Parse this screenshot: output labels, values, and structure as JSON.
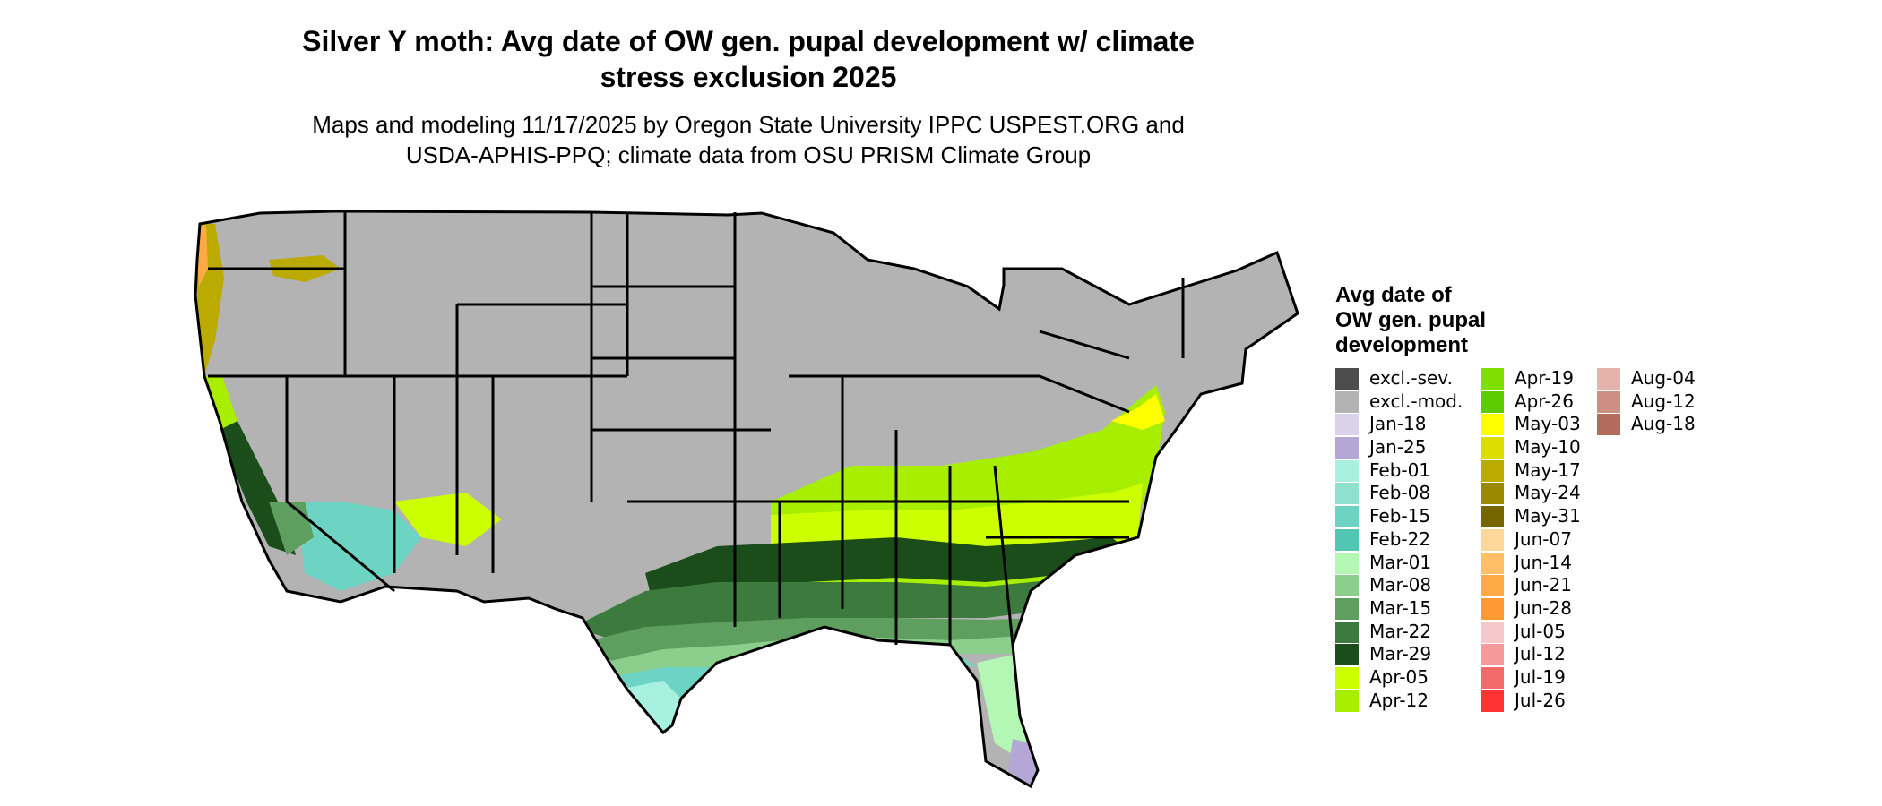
{
  "title": "Silver Y moth: Avg date of OW gen. pupal development w/ climate stress exclusion 2025",
  "title_lines": [
    "Silver Y moth: Avg date of OW gen. pupal development w/ climate",
    "stress exclusion 2025"
  ],
  "subtitle_lines": [
    "Maps and modeling 11/17/2025 by Oregon State University IPPC USPEST.ORG and",
    "USDA-APHIS-PPQ; climate data from OSU PRISM Climate Group"
  ],
  "legend": {
    "title_lines": [
      "Avg date of",
      "OW gen. pupal",
      "development"
    ],
    "columns": [
      [
        {
          "label": "excl.-sev.",
          "color": "#4d4d4d"
        },
        {
          "label": "excl.-mod.",
          "color": "#b3b3b3"
        },
        {
          "label": "Jan-18",
          "color": "#d9d2e9"
        },
        {
          "label": "Jan-25",
          "color": "#b4a7d6"
        },
        {
          "label": "Feb-01",
          "color": "#a8f0e0"
        },
        {
          "label": "Feb-08",
          "color": "#8ee0cf"
        },
        {
          "label": "Feb-15",
          "color": "#6dd4c4"
        },
        {
          "label": "Feb-22",
          "color": "#52c6b4"
        },
        {
          "label": "Mar-01",
          "color": "#b4f6b4"
        },
        {
          "label": "Mar-08",
          "color": "#8ccf8c"
        },
        {
          "label": "Mar-15",
          "color": "#5e9e5e"
        },
        {
          "label": "Mar-22",
          "color": "#3d7a3d"
        },
        {
          "label": "Mar-29",
          "color": "#1a4d1a"
        },
        {
          "label": "Apr-05",
          "color": "#ccff00"
        },
        {
          "label": "Apr-12",
          "color": "#a8ee00"
        }
      ],
      [
        {
          "label": "Apr-19",
          "color": "#7fe000"
        },
        {
          "label": "Apr-26",
          "color": "#5ccc00"
        },
        {
          "label": "May-03",
          "color": "#ffff00"
        },
        {
          "label": "May-10",
          "color": "#dddd00"
        },
        {
          "label": "May-17",
          "color": "#bbaa00"
        },
        {
          "label": "May-24",
          "color": "#998800"
        },
        {
          "label": "May-31",
          "color": "#776600"
        },
        {
          "label": "Jun-07",
          "color": "#ffd699"
        },
        {
          "label": "Jun-14",
          "color": "#ffbf66"
        },
        {
          "label": "Jun-21",
          "color": "#ffaa44"
        },
        {
          "label": "Jun-28",
          "color": "#ff9933"
        },
        {
          "label": "Jul-05",
          "color": "#f5c8cc"
        },
        {
          "label": "Jul-12",
          "color": "#f59a9a"
        },
        {
          "label": "Jul-19",
          "color": "#f26a6a"
        },
        {
          "label": "Jul-26",
          "color": "#ff3333"
        }
      ],
      [
        {
          "label": "Aug-04",
          "color": "#e6b3aa"
        },
        {
          "label": "Aug-12",
          "color": "#cc8f82"
        },
        {
          "label": "Aug-18",
          "color": "#b36b5e"
        }
      ]
    ]
  },
  "map_colors": {
    "excluded_mod": "#b3b3b3",
    "excluded_sev": "#4d4d4d",
    "border": "#000000"
  }
}
